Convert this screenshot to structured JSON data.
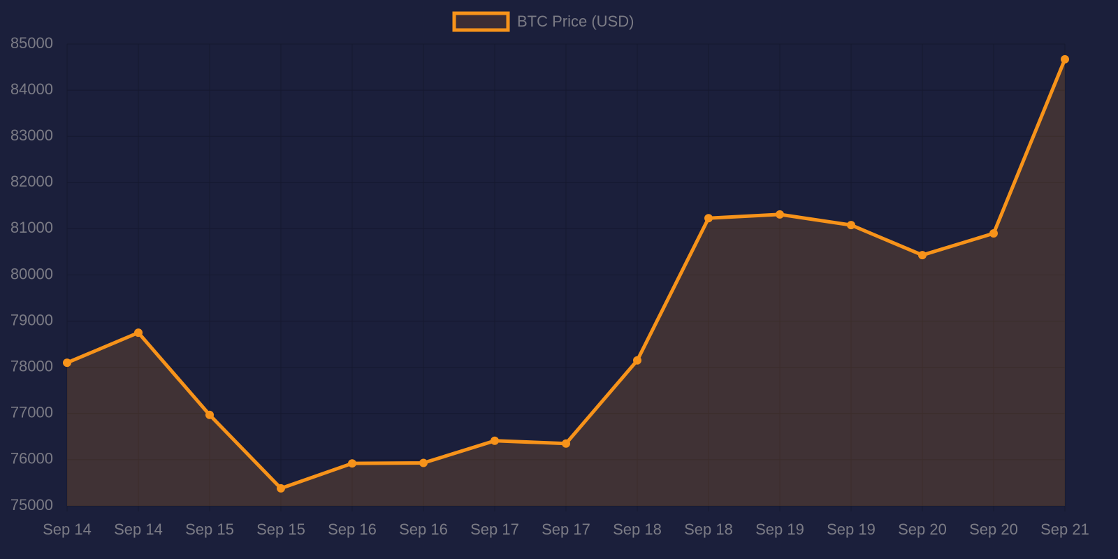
{
  "chart_data": {
    "type": "line",
    "categories": [
      "Sep 14",
      "Sep 14",
      "Sep 15",
      "Sep 15",
      "Sep 16",
      "Sep 16",
      "Sep 17",
      "Sep 17",
      "Sep 18",
      "Sep 18",
      "Sep 19",
      "Sep 19",
      "Sep 20",
      "Sep 20",
      "Sep 21"
    ],
    "series": [
      {
        "name": "BTC Price (USD)",
        "color": "#f7931a",
        "values": [
          78100,
          78750,
          76970,
          75380,
          75920,
          75930,
          76410,
          76350,
          78150,
          81230,
          81310,
          81080,
          80430,
          80900,
          84670
        ]
      }
    ],
    "ylim": [
      75000,
      85000
    ],
    "yticks": [
      75000,
      76000,
      77000,
      78000,
      79000,
      80000,
      81000,
      82000,
      83000,
      84000,
      85000
    ],
    "grid": true,
    "legend": "top",
    "fill": true
  }
}
